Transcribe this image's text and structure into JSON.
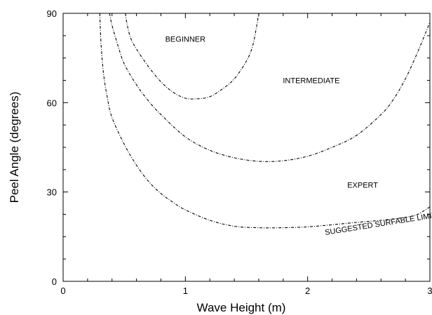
{
  "chart_data": {
    "type": "line",
    "xlabel": "Wave Height (m)",
    "ylabel": "Peel Angle (degrees)",
    "xlim": [
      0,
      3
    ],
    "ylim": [
      0,
      90
    ],
    "x_ticks": [
      "0",
      "1",
      "2",
      "3"
    ],
    "y_ticks": [
      "0",
      "30",
      "60",
      "90"
    ],
    "grid": false,
    "series": [
      {
        "name": "BEGINNER",
        "x": [
          0.51,
          0.52,
          0.55,
          0.6,
          0.7,
          0.8,
          0.9,
          1.0,
          1.1,
          1.2,
          1.3,
          1.4,
          1.5,
          1.55,
          1.58,
          1.6
        ],
        "y": [
          90,
          87,
          82,
          78,
          72,
          67,
          63.5,
          61.5,
          61.3,
          62,
          64.5,
          68,
          74,
          79,
          85,
          90
        ]
      },
      {
        "name": "INTERMEDIATE",
        "x": [
          0.38,
          0.4,
          0.45,
          0.5,
          0.6,
          0.7,
          0.8,
          1.0,
          1.2,
          1.4,
          1.6,
          1.8,
          2.0,
          2.2,
          2.4,
          2.6,
          2.7,
          2.8,
          2.9,
          3.0
        ],
        "y": [
          90,
          86,
          79,
          73,
          66,
          60.5,
          56,
          48.5,
          44,
          41.5,
          40.3,
          40.5,
          42,
          45,
          49,
          56,
          61,
          68,
          77,
          87
        ]
      },
      {
        "name": "EXPERT",
        "x": [
          0.3,
          0.31,
          0.33,
          0.36,
          0.4,
          0.5,
          0.6,
          0.7,
          0.8,
          0.9,
          1.0,
          1.2,
          1.4,
          1.6,
          1.8,
          2.0,
          2.2,
          2.4,
          2.6,
          2.8,
          2.9,
          3.0
        ],
        "y": [
          90,
          80,
          70,
          62,
          55,
          46,
          39,
          33.5,
          29.5,
          26.5,
          24,
          20.5,
          18.5,
          18,
          18,
          18.3,
          19,
          19.8,
          20.5,
          21.5,
          22.5,
          25
        ]
      }
    ],
    "annotations": [
      {
        "text": "BEGINNER",
        "x": 1.0,
        "y": 80.5
      },
      {
        "text": "INTERMEDIATE",
        "x": 2.03,
        "y": 66.5
      },
      {
        "text": "EXPERT",
        "x": 2.45,
        "y": 31.5
      },
      {
        "text": "SUGGESTED SURFABLE LIMIT",
        "x": 2.6,
        "y": 18.5,
        "rotation": -9
      }
    ]
  }
}
